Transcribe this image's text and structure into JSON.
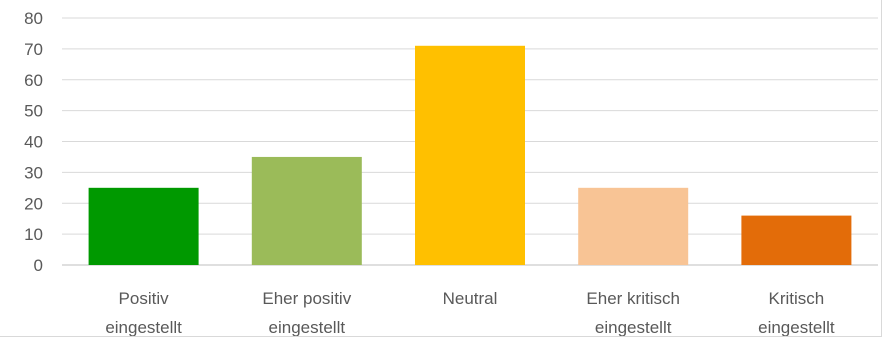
{
  "chart_data": {
    "type": "bar",
    "title": "",
    "xlabel": "",
    "ylabel": "",
    "ylim": [
      0,
      80
    ],
    "yticks": [
      0,
      10,
      20,
      30,
      40,
      50,
      60,
      70,
      80
    ],
    "grid": true,
    "legend": "none",
    "categories": [
      [
        "Positiv",
        "eingestellt"
      ],
      [
        "Eher positiv",
        "eingestellt"
      ],
      [
        "Neutral"
      ],
      [
        "Eher kritisch",
        "eingestellt"
      ],
      [
        "Kritisch",
        "eingestellt"
      ]
    ],
    "values": [
      25,
      35,
      71,
      25,
      16
    ],
    "colors": [
      "#009900",
      "#9bbb59",
      "#ffc000",
      "#f8c495",
      "#e36c09"
    ]
  }
}
